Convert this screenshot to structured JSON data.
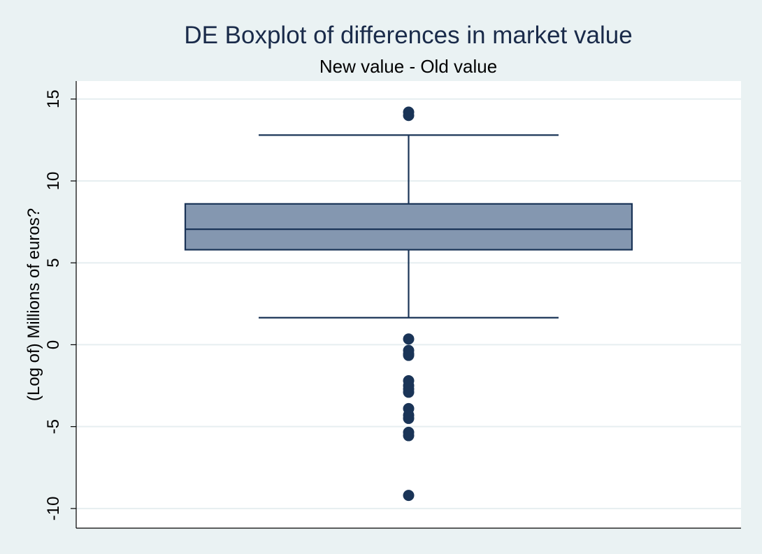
{
  "chart_data": {
    "type": "boxplot",
    "title": "DE Boxplot of differences in market value",
    "subtitle": "New value - Old value",
    "xlabel": "",
    "ylabel": "(Log of) Millions of euros?",
    "ylim": [
      -11.2,
      16.1
    ],
    "yticks": [
      {
        "value": 15,
        "label": "15"
      },
      {
        "value": 10,
        "label": "10"
      },
      {
        "value": 5,
        "label": "5"
      },
      {
        "value": 0,
        "label": "0"
      },
      {
        "value": -5,
        "label": "-5"
      },
      {
        "value": -10,
        "label": "-10"
      }
    ],
    "grid": true,
    "box": {
      "whisker_low": 1.65,
      "q1": 5.8,
      "median": 7.05,
      "q3": 8.6,
      "whisker_high": 12.8
    },
    "outliers": [
      14.2,
      14.0,
      0.35,
      -0.35,
      -0.55,
      -0.65,
      -2.2,
      -2.5,
      -2.7,
      -2.9,
      -3.9,
      -4.3,
      -4.5,
      -5.35,
      -5.55,
      -9.2
    ],
    "colors": {
      "box_fill": "#8497b0",
      "line": "#1a3457",
      "marker": "#1a3457",
      "plot_bg": "#ffffff",
      "outer_bg": "#eaf2f3",
      "grid": "#e6eef0"
    }
  }
}
